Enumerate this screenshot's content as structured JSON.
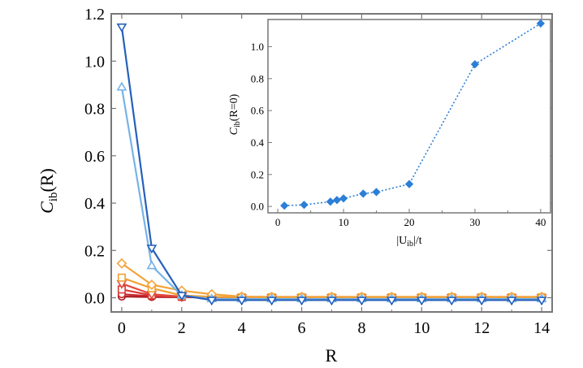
{
  "chart_data": [
    {
      "type": "line",
      "panel": "main",
      "xlabel": "R",
      "ylabel_main": "C",
      "ylabel_sub": "ib",
      "ylabel_tail": "(R)",
      "xlim": [
        -0.35,
        14.35
      ],
      "ylim": [
        -0.06,
        1.2
      ],
      "xticks": [
        0,
        2,
        4,
        6,
        8,
        10,
        12,
        14
      ],
      "yticks": [
        0.0,
        0.2,
        0.4,
        0.6,
        0.8,
        1.0,
        1.2
      ],
      "x": [
        0,
        1,
        2,
        3,
        4,
        5,
        6,
        7,
        8,
        9,
        10,
        11,
        12,
        13,
        14
      ],
      "series": [
        {
          "name": "dark-red-circle",
          "color": "#a8161c",
          "marker": "circle",
          "values": [
            0.005,
            0.003,
            0.002,
            0.001,
            0.001,
            0.001,
            0.001,
            0.001,
            0.001,
            0.001,
            0.001,
            0.001,
            0.001,
            0.001,
            0.001
          ]
        },
        {
          "name": "red-circle",
          "color": "#c8282e",
          "marker": "circle",
          "values": [
            0.015,
            0.006,
            0.003,
            0.002,
            0.001,
            0.001,
            0.001,
            0.001,
            0.001,
            0.001,
            0.001,
            0.001,
            0.001,
            0.001,
            0.001
          ]
        },
        {
          "name": "red-square",
          "color": "#d83a35",
          "marker": "square",
          "values": [
            0.035,
            0.01,
            0.004,
            0.002,
            0.001,
            0.001,
            0.001,
            0.001,
            0.001,
            0.001,
            0.001,
            0.001,
            0.001,
            0.001,
            0.001
          ]
        },
        {
          "name": "red-down-triangle",
          "color": "#e04a3c",
          "marker": "triangle-down",
          "values": [
            0.06,
            0.015,
            0.005,
            0.002,
            0.001,
            0.001,
            0.001,
            0.001,
            0.001,
            0.001,
            0.001,
            0.001,
            0.001,
            0.001,
            0.001
          ]
        },
        {
          "name": "orange-square",
          "color": "#f0a030",
          "marker": "square",
          "values": [
            0.085,
            0.04,
            0.01,
            0.004,
            0.002,
            0.002,
            0.002,
            0.002,
            0.002,
            0.002,
            0.002,
            0.002,
            0.002,
            0.002,
            0.002
          ]
        },
        {
          "name": "orange-diamond",
          "color": "#f3a33a",
          "marker": "diamond",
          "values": [
            0.145,
            0.055,
            0.03,
            0.015,
            0.005,
            0.004,
            0.004,
            0.004,
            0.004,
            0.004,
            0.004,
            0.004,
            0.004,
            0.004,
            0.004
          ]
        },
        {
          "name": "light-blue-up-triangle",
          "color": "#77b3e6",
          "marker": "triangle-up",
          "values": [
            0.89,
            0.135,
            0.01,
            -0.005,
            -0.005,
            -0.005,
            -0.005,
            -0.005,
            -0.005,
            -0.005,
            -0.005,
            -0.005,
            -0.005,
            -0.005,
            -0.005
          ]
        },
        {
          "name": "dark-blue-down-triangle",
          "color": "#2560bb",
          "marker": "triangle-down",
          "values": [
            1.145,
            0.21,
            0.01,
            -0.01,
            -0.01,
            -0.01,
            -0.01,
            -0.01,
            -0.01,
            -0.01,
            -0.01,
            -0.01,
            -0.01,
            -0.01,
            -0.01
          ]
        }
      ]
    },
    {
      "type": "scatter",
      "panel": "inset",
      "xlabel_pre": "|U",
      "xlabel_sub": "ib",
      "xlabel_post": "|/t",
      "ylabel_main": "C",
      "ylabel_sub": "ib",
      "ylabel_tail": "(R=0)",
      "xlim": [
        -1.5,
        41.5
      ],
      "ylim": [
        -0.04,
        1.17
      ],
      "xticks": [
        0,
        10,
        20,
        30,
        40
      ],
      "yticks": [
        0.0,
        0.2,
        0.4,
        0.6,
        0.8,
        1.0
      ],
      "ytick_labels": [
        "0.0",
        "0.2",
        "0.4",
        "0.6",
        "0.8",
        "1.0"
      ],
      "color": "#2b7fd6",
      "line_style": "dotted",
      "marker": "diamond",
      "x": [
        1,
        4,
        8,
        9,
        10,
        13,
        15,
        20,
        30,
        40
      ],
      "y": [
        0.005,
        0.01,
        0.03,
        0.04,
        0.05,
        0.08,
        0.09,
        0.14,
        0.89,
        1.145
      ]
    }
  ]
}
